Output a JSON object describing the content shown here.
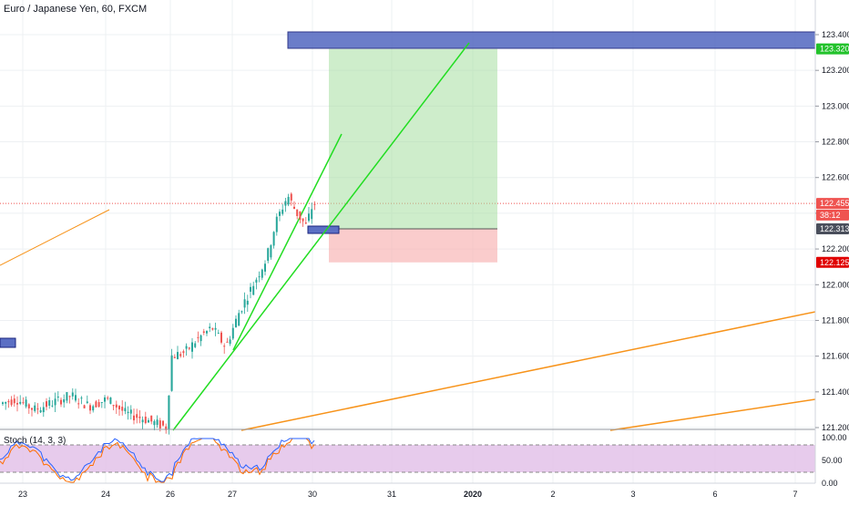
{
  "header": {
    "title": "Euro / Japanese Yen, 60, FXCM"
  },
  "stoch_label": "Stoch (14, 3, 3)",
  "colors": {
    "up": "#26a69a",
    "down": "#ef5350",
    "grid": "#eef0f3",
    "green_line": "#22dd22",
    "orange_line": "#f7931a",
    "profit_zone": "#a5dea0",
    "loss_zone": "#f7b0b0",
    "blue_box": "#5b6fc4",
    "stoch_bg": "#e1bee7",
    "stoch_k": "#2962ff",
    "stoch_d": "#ff6d00"
  },
  "chart_data": {
    "type": "candlestick",
    "symbol": "Euro / Japanese Yen",
    "interval": "60",
    "source": "FXCM",
    "y_axis": {
      "ticks": [
        "123.400",
        "123.200",
        "123.000",
        "122.800",
        "122.600",
        "122.400",
        "122.200",
        "122.000",
        "121.800",
        "121.600",
        "121.400",
        "121.200"
      ],
      "range": [
        121.19,
        123.52
      ]
    },
    "x_axis": {
      "ticks": [
        "23",
        "24",
        "26",
        "27",
        "30",
        "31",
        "2020",
        "2",
        "3",
        "6",
        "7"
      ]
    },
    "price_labels": [
      {
        "text": "123.320",
        "value": 123.32,
        "color": "#22c22b"
      },
      {
        "text": "122.455",
        "value": 122.455,
        "color": "#ef5350"
      },
      {
        "text": "38:12",
        "value": 122.39,
        "color": "#ef5350"
      },
      {
        "text": "122.313",
        "value": 122.313,
        "color": "#4a4f5c"
      },
      {
        "text": "122.125",
        "value": 122.125,
        "color": "#e00000"
      }
    ],
    "current_price": 122.455,
    "position": {
      "entry": 122.313,
      "target": 123.32,
      "stop": 122.125
    },
    "stochastic": {
      "params": "14, 3, 3",
      "ticks": [
        "100.00",
        "50.00",
        "0.00"
      ],
      "upper_band": 80,
      "lower_band": 20
    }
  }
}
